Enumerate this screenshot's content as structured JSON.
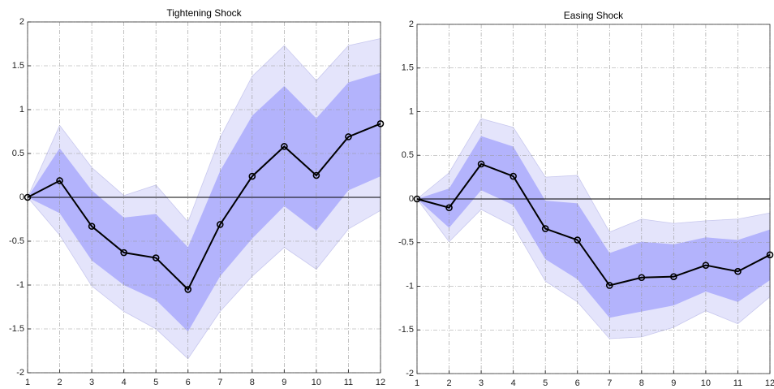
{
  "chart_data": [
    {
      "type": "line",
      "title": "Tightening Shock",
      "x": [
        1,
        2,
        3,
        4,
        5,
        6,
        7,
        8,
        9,
        10,
        11,
        12
      ],
      "values": [
        0,
        0.19,
        -0.33,
        -0.63,
        -0.69,
        -1.05,
        -0.31,
        0.24,
        0.58,
        0.25,
        0.69,
        0.84
      ],
      "color": "#000000",
      "bands": [
        {
          "color": "#e4e4fb",
          "upper": [
            0,
            0.82,
            0.34,
            0.02,
            0.14,
            -0.28,
            0.68,
            1.38,
            1.73,
            1.33,
            1.73,
            1.81
          ],
          "lower": [
            0,
            -0.43,
            -1.01,
            -1.3,
            -1.5,
            -1.84,
            -1.3,
            -0.9,
            -0.57,
            -0.82,
            -0.36,
            -0.15
          ]
        },
        {
          "color": "#b3b3fc",
          "upper": [
            0,
            0.56,
            0.08,
            -0.23,
            -0.19,
            -0.57,
            0.3,
            0.93,
            1.27,
            0.9,
            1.31,
            1.42
          ],
          "lower": [
            0,
            -0.18,
            -0.72,
            -1.0,
            -1.17,
            -1.53,
            -0.9,
            -0.47,
            -0.1,
            -0.38,
            0.08,
            0.24
          ]
        }
      ],
      "xlim": [
        1,
        12
      ],
      "xticks": [
        1,
        2,
        3,
        4,
        5,
        6,
        7,
        8,
        9,
        10,
        11,
        12
      ],
      "ylim": [
        -2,
        2
      ],
      "yticks": [
        -2,
        -1.5,
        -1,
        -0.5,
        0,
        0.5,
        1,
        1.5,
        2
      ],
      "grid": true
    },
    {
      "type": "line",
      "title": "Easing Shock",
      "x": [
        1,
        2,
        3,
        4,
        5,
        6,
        7,
        8,
        9,
        10,
        11,
        12
      ],
      "values": [
        0,
        -0.1,
        0.4,
        0.26,
        -0.34,
        -0.47,
        -0.99,
        -0.9,
        -0.89,
        -0.76,
        -0.83,
        -0.64
      ],
      "color": "#000000",
      "bands": [
        {
          "color": "#e4e4fb",
          "upper": [
            0,
            0.3,
            0.92,
            0.82,
            0.25,
            0.27,
            -0.38,
            -0.23,
            -0.28,
            -0.25,
            -0.23,
            -0.16
          ],
          "lower": [
            0,
            -0.49,
            -0.12,
            -0.31,
            -0.94,
            -1.18,
            -1.6,
            -1.58,
            -1.47,
            -1.28,
            -1.43,
            -1.12
          ]
        },
        {
          "color": "#b3b3fc",
          "upper": [
            0,
            0.12,
            0.72,
            0.6,
            -0.02,
            -0.05,
            -0.62,
            -0.49,
            -0.52,
            -0.44,
            -0.47,
            -0.35
          ],
          "lower": [
            0,
            -0.33,
            0.1,
            -0.07,
            -0.69,
            -0.92,
            -1.36,
            -1.29,
            -1.22,
            -1.06,
            -1.18,
            -0.93
          ]
        }
      ],
      "xlim": [
        1,
        12
      ],
      "xticks": [
        1,
        2,
        3,
        4,
        5,
        6,
        7,
        8,
        9,
        10,
        11,
        12
      ],
      "ylim": [
        -2,
        2
      ],
      "yticks": [
        -2,
        -1.5,
        -1,
        -0.5,
        0,
        0.5,
        1,
        1.5,
        2
      ],
      "grid": true
    }
  ]
}
